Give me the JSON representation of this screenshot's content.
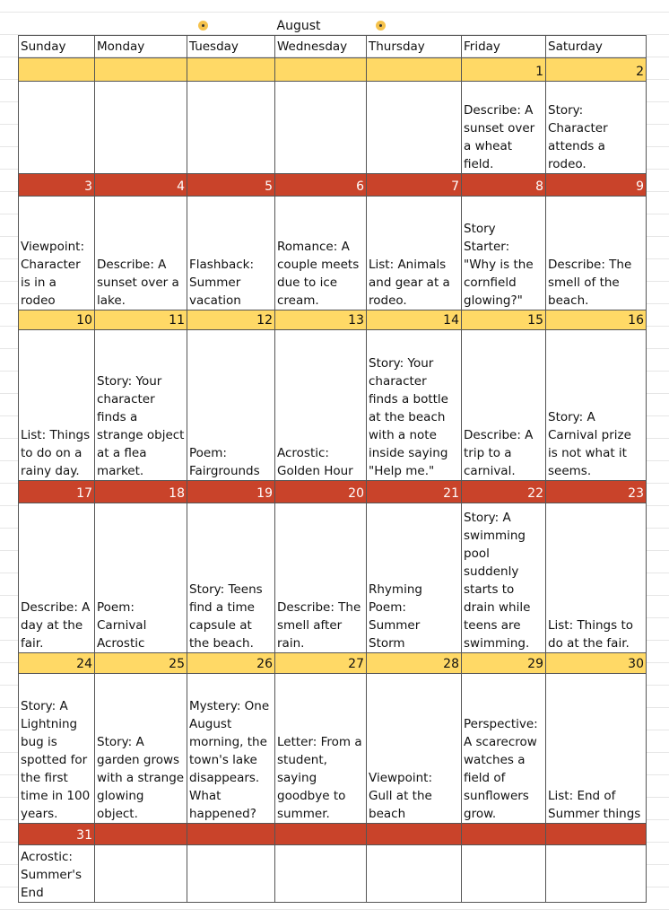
{
  "colors": {
    "yellow": "#FFD966",
    "red": "#C9432A"
  },
  "title": "August",
  "icons": [
    "sun-icon",
    "sun-icon"
  ],
  "days": [
    "Sunday",
    "Monday",
    "Tuesday",
    "Wednesday",
    "Thursday",
    "Friday",
    "Saturday"
  ],
  "weeks": [
    {
      "band": "yellow",
      "numbers": [
        "",
        "",
        "",
        "",
        "",
        "1",
        "2"
      ],
      "prompts": [
        "",
        "",
        "",
        "",
        "",
        "Describe: A sunset over a wheat field.",
        "Story: Character attends a rodeo."
      ]
    },
    {
      "band": "red",
      "numbers": [
        "3",
        "4",
        "5",
        "6",
        "7",
        "8",
        "9"
      ],
      "prompts": [
        "Viewpoint: Character is in a rodeo",
        "Describe: A sunset over a lake.",
        "Flashback: Summer vacation",
        "Romance: A couple meets due to ice cream.",
        "List: Animals and gear at a rodeo.",
        "Story Starter: \"Why is the cornfield glowing?\"",
        "Describe: The smell of the beach."
      ]
    },
    {
      "band": "yellow",
      "numbers": [
        "10",
        "11",
        "12",
        "13",
        "14",
        "15",
        "16"
      ],
      "prompts": [
        "List: Things to do on a rainy day.",
        "Story: Your character finds a strange object at a flea market.",
        "Poem: Fairgrounds",
        "Acrostic: Golden Hour",
        "Story: Your character finds a bottle at the beach with a note inside saying \"Help me.\"",
        "Describe: A trip to a carnival.",
        "Story: A Carnival prize is not what it seems."
      ]
    },
    {
      "band": "red",
      "numbers": [
        "17",
        "18",
        "19",
        "20",
        "21",
        "22",
        "23"
      ],
      "prompts": [
        "Describe: A day at the fair.",
        "Poem: Carnival Acrostic",
        "Story: Teens find a time capsule at the beach.",
        "Describe: The smell after rain.",
        "Rhyming Poem: Summer Storm",
        "Story: A swimming pool suddenly starts to drain while teens are swimming.",
        "List: Things to do at the fair."
      ]
    },
    {
      "band": "yellow",
      "numbers": [
        "24",
        "25",
        "26",
        "27",
        "28",
        "29",
        "30"
      ],
      "prompts": [
        "Story: A Lightning bug is spotted for the first time in 100 years.",
        "Story: A garden grows with a strange glowing object.",
        "Mystery: One August morning, the town's lake disappears. What happened?",
        "Letter: From a student, saying goodbye to summer.",
        "Viewpoint: Gull at the beach",
        "Perspective: A scarecrow watches a field of sunflowers grow.",
        "List: End of Summer things"
      ]
    },
    {
      "band": "red",
      "numbers": [
        "31",
        "",
        "",
        "",
        "",
        "",
        ""
      ],
      "prompts": [
        "Acrostic: Summer's End",
        "",
        "",
        "",
        "",
        "",
        ""
      ]
    }
  ]
}
